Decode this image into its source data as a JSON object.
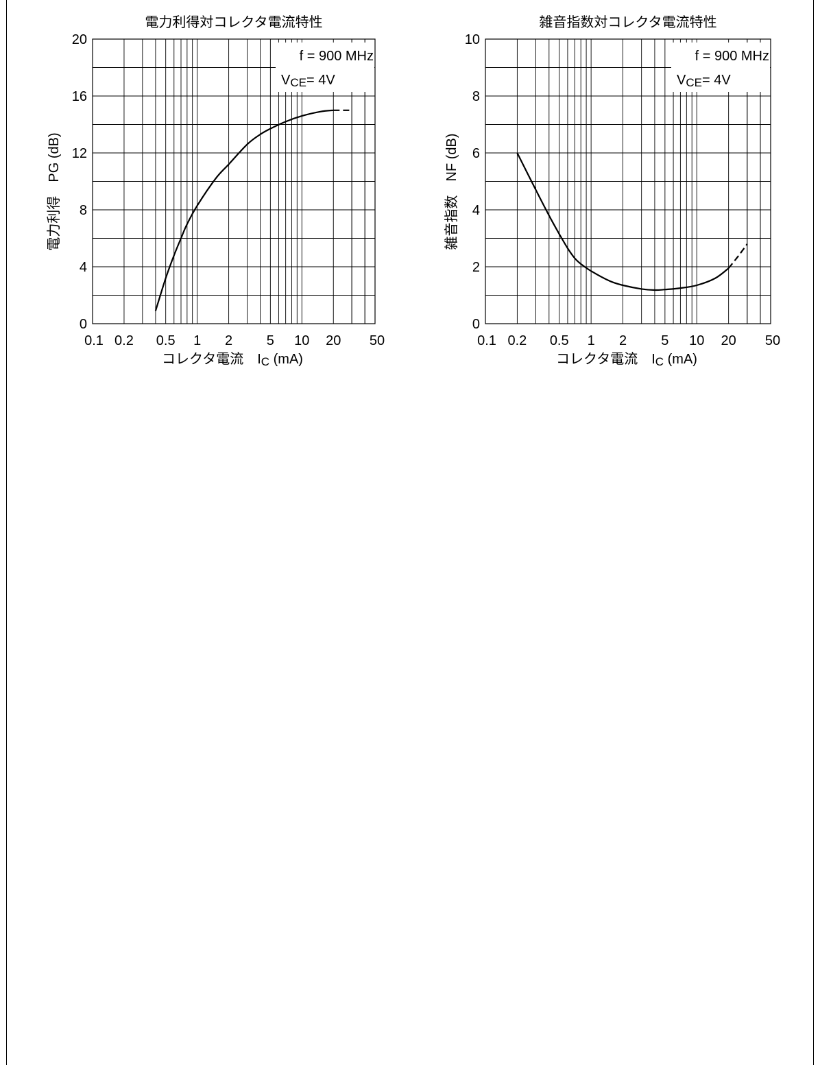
{
  "chart_data": [
    {
      "type": "line",
      "title": "電力利得対コレクタ電流特性",
      "xlabel_prefix": "コレクタ電流",
      "xlabel_symbol": "I",
      "xlabel_sub": "C",
      "xlabel_unit": "(mA)",
      "ylabel": "電力利得　PG (dB)",
      "xscale": "log",
      "xlim": [
        0.1,
        50
      ],
      "ylim": [
        0,
        20
      ],
      "xticks": [
        0.1,
        0.2,
        0.5,
        1,
        2,
        5,
        10,
        20,
        50
      ],
      "xtick_labels": [
        "0.1",
        "0.2",
        "0.5",
        "1",
        "2",
        "5",
        "10",
        "20",
        "50"
      ],
      "yticks": [
        0,
        4,
        8,
        12,
        16,
        20
      ],
      "ytick_labels": [
        "0",
        "4",
        "8",
        "12",
        "16",
        "20"
      ],
      "grid": true,
      "conditions": {
        "freq": "f = 900 MHz",
        "vce_symbol": "V",
        "vce_sub": "CE",
        "vce_value": "= 4V"
      },
      "series": [
        {
          "x": [
            0.4,
            0.5,
            0.6,
            0.7,
            0.8,
            1,
            1.5,
            2,
            3,
            4,
            5,
            7,
            10,
            15,
            20
          ],
          "y": [
            0.9,
            3.2,
            4.8,
            6.0,
            7.0,
            8.3,
            10.2,
            11.2,
            12.6,
            13.3,
            13.7,
            14.2,
            14.6,
            14.9,
            15.0
          ],
          "style": "solid"
        },
        {
          "x": [
            20,
            25,
            30
          ],
          "y": [
            15.0,
            15.0,
            15.0
          ],
          "style": "dashed"
        }
      ]
    },
    {
      "type": "line",
      "title": "雑音指数対コレクタ電流特性",
      "xlabel_prefix": "コレクタ電流",
      "xlabel_symbol": "I",
      "xlabel_sub": "C",
      "xlabel_unit": "(mA)",
      "ylabel": "雑音指数　NF (dB)",
      "xscale": "log",
      "xlim": [
        0.1,
        50
      ],
      "ylim": [
        0,
        10
      ],
      "xticks": [
        0.1,
        0.2,
        0.5,
        1,
        2,
        5,
        10,
        20,
        50
      ],
      "xtick_labels": [
        "0.1",
        "0.2",
        "0.5",
        "1",
        "2",
        "5",
        "10",
        "20",
        "50"
      ],
      "yticks": [
        0,
        2,
        4,
        6,
        8,
        10
      ],
      "ytick_labels": [
        "0",
        "2",
        "4",
        "6",
        "8",
        "10"
      ],
      "grid": true,
      "conditions": {
        "freq": "f = 900 MHz",
        "vce_symbol": "V",
        "vce_sub": "CE",
        "vce_value": "= 4V"
      },
      "series": [
        {
          "x": [
            0.2,
            0.3,
            0.4,
            0.5,
            0.6,
            0.7,
            0.8,
            1,
            1.5,
            2,
            3,
            4,
            5,
            7,
            10,
            15,
            20
          ],
          "y": [
            6.0,
            4.7,
            3.8,
            3.15,
            2.65,
            2.3,
            2.1,
            1.85,
            1.5,
            1.35,
            1.22,
            1.18,
            1.2,
            1.25,
            1.35,
            1.6,
            1.95
          ],
          "style": "solid"
        },
        {
          "x": [
            20,
            25,
            30
          ],
          "y": [
            1.95,
            2.4,
            2.8
          ],
          "style": "dashed"
        }
      ]
    }
  ]
}
